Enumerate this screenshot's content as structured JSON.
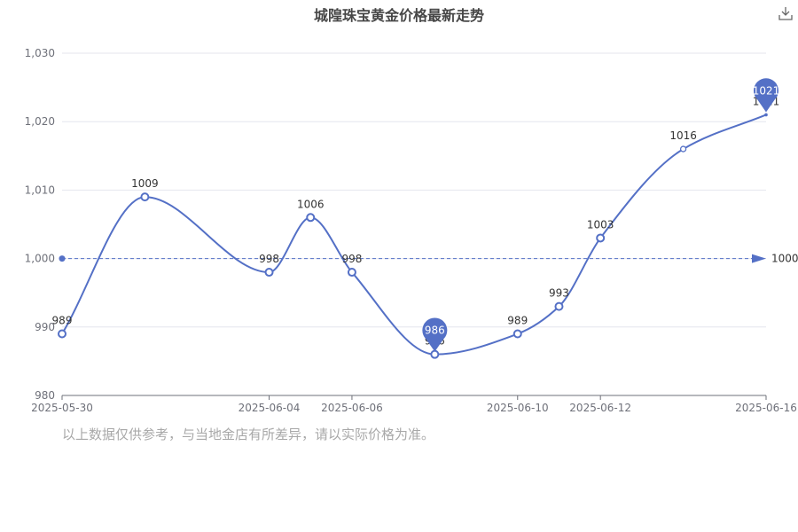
{
  "chart_data": {
    "type": "line",
    "title": "城隍珠宝黄金价格最新走势",
    "x": [
      "2025-05-30",
      "2025-06-01",
      "2025-06-04",
      "2025-06-05",
      "2025-06-06",
      "2025-06-08",
      "2025-06-10",
      "2025-06-11",
      "2025-06-12",
      "2025-06-14",
      "2025-06-16"
    ],
    "series": [
      {
        "values": [
          989,
          1009,
          998,
          1006,
          998,
          986,
          989,
          993,
          1003,
          1016,
          1021
        ]
      }
    ],
    "ylim": [
      980,
      1030
    ],
    "yticks": [
      "980",
      "990",
      "1,000",
      "1,010",
      "1,020",
      "1,030"
    ],
    "xticks": [
      "2025-05-30",
      "2025-06-04",
      "2025-06-06",
      "2025-06-10",
      "2025-06-12",
      "2025-06-16"
    ],
    "average_line": {
      "value": 1000,
      "label": "1000"
    },
    "markers": [
      {
        "type": "min",
        "label": "986"
      },
      {
        "type": "max",
        "label": "1021"
      }
    ],
    "color": "#5470c6",
    "grid": true
  },
  "toolbar": {
    "download_icon": "download-icon"
  },
  "disclaimer": "以上数据仅供参考，与当地金店有所差异，请以实际价格为准。"
}
